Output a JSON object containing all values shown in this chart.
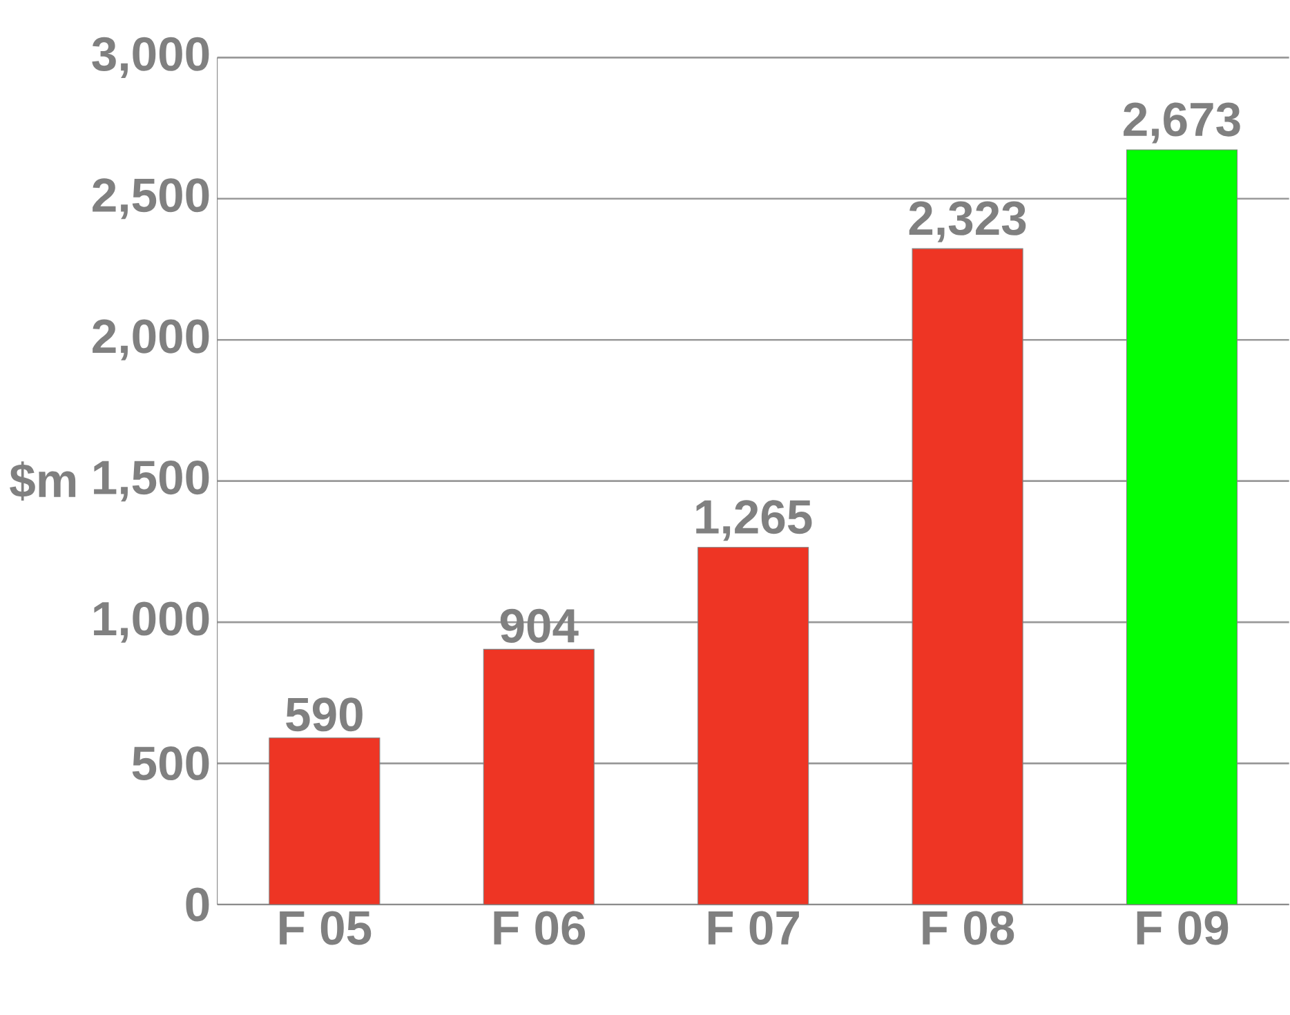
{
  "chart_data": {
    "type": "bar",
    "ylabel": "$m",
    "categories": [
      "F 05",
      "F 06",
      "F 07",
      "F 08",
      "F 09"
    ],
    "values": [
      590,
      904,
      1265,
      2323,
      2673
    ],
    "colors": [
      "#ee3524",
      "#ee3524",
      "#ee3524",
      "#ee3524",
      "#00ff00"
    ],
    "value_labels": [
      "590",
      "904",
      "1,265",
      "2,323",
      "2,673"
    ],
    "ylim": [
      0,
      3000
    ],
    "yticks": [
      {
        "value": 0,
        "label": "0"
      },
      {
        "value": 500,
        "label": "500"
      },
      {
        "value": 1000,
        "label": "1,000"
      },
      {
        "value": 1500,
        "label": "1,500"
      },
      {
        "value": 2000,
        "label": "2,000"
      },
      {
        "value": 2500,
        "label": "2,500"
      },
      {
        "value": 3000,
        "label": "3,000"
      }
    ],
    "grid": "y"
  }
}
